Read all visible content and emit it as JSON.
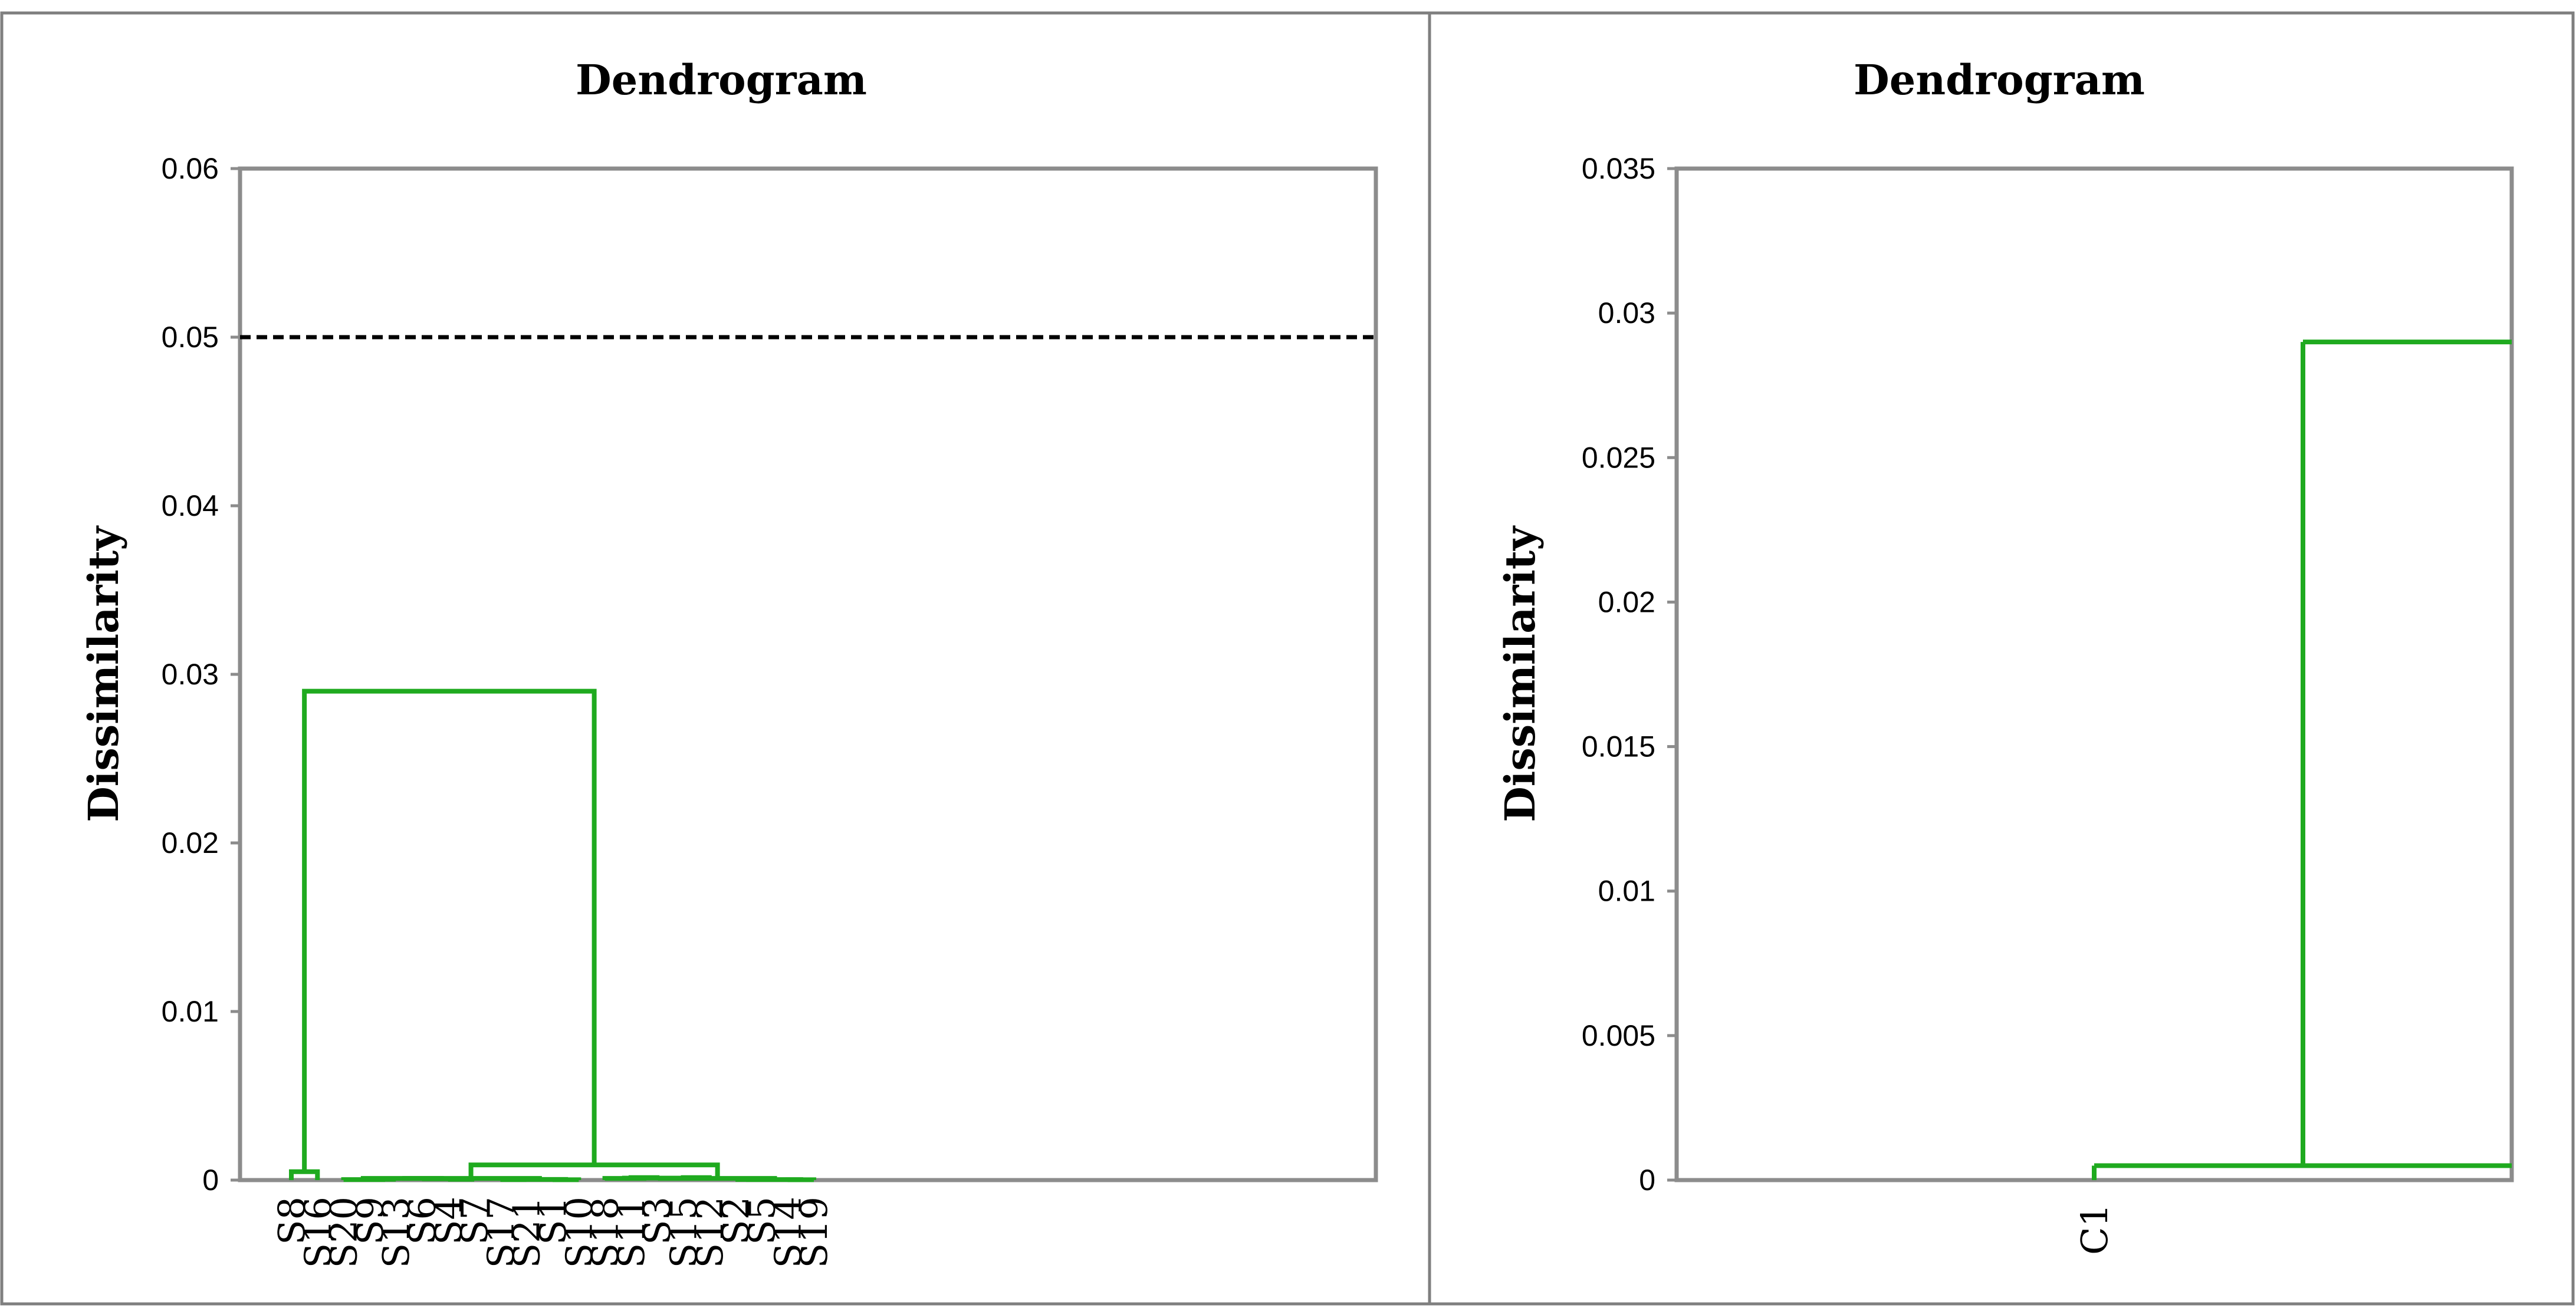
{
  "figure": {
    "frame_color": "#7f7f7f",
    "link_color": "#1faa1f",
    "cut_line_color": "#000000"
  },
  "chart_data": [
    {
      "type": "dendrogram",
      "title": "Dendrogram",
      "ylabel": "Dissimilarity",
      "xlabel": "",
      "ylim": [
        0,
        0.06
      ],
      "yticks": [
        "0",
        "0.01",
        "0.02",
        "0.03",
        "0.04",
        "0.05",
        "0.06"
      ],
      "ytick_values": [
        0,
        0.01,
        0.02,
        0.03,
        0.04,
        0.05,
        0.06
      ],
      "leaves": [
        "S8",
        "S16",
        "S20",
        "S9",
        "S13",
        "S6",
        "S4",
        "S7",
        "S17",
        "S21",
        "S1",
        "S10",
        "S18",
        "S11",
        "S3",
        "S15",
        "S12",
        "S2",
        "S5",
        "S14",
        "S19"
      ],
      "cut_line": {
        "y": 0.05,
        "style": "dashed"
      },
      "merges": [
        {
          "left": "leaf:0",
          "right": "leaf:1",
          "height": 0.0005
        },
        {
          "left": "leaf:3",
          "right": "leaf:4",
          "height": 5e-05
        },
        {
          "left": "leaf:2",
          "right": "node:1",
          "height": 3e-05
        },
        {
          "left": "leaf:6",
          "right": "leaf:7",
          "height": 5e-05
        },
        {
          "left": "leaf:5",
          "right": "node:3",
          "height": 8e-05
        },
        {
          "left": "node:2",
          "right": "node:4",
          "height": 0.0001
        },
        {
          "left": "leaf:8",
          "right": "leaf:9",
          "height": 3e-05
        },
        {
          "left": "leaf:10",
          "right": "leaf:11",
          "height": 2e-05
        },
        {
          "left": "node:6",
          "right": "node:7",
          "height": 4e-05
        },
        {
          "left": "node:5",
          "right": "node:8",
          "height": 0.0001
        },
        {
          "left": "leaf:13",
          "right": "leaf:14",
          "height": 0.00015
        },
        {
          "left": "leaf:12",
          "right": "node:10",
          "height": 0.0001
        },
        {
          "left": "leaf:15",
          "right": "leaf:16",
          "height": 0.00015
        },
        {
          "left": "node:11",
          "right": "node:12",
          "height": 0.00012
        },
        {
          "left": "leaf:17",
          "right": "leaf:18",
          "height": 4e-05
        },
        {
          "left": "leaf:19",
          "right": "leaf:20",
          "height": 2e-05
        },
        {
          "left": "node:14",
          "right": "node:15",
          "height": 3e-05
        },
        {
          "left": "node:13",
          "right": "node:16",
          "height": 0.0001
        },
        {
          "left": "node:9",
          "right": "node:17",
          "height": 0.0009
        },
        {
          "left": "node:0",
          "right": "node:18",
          "height": 0.029
        }
      ]
    },
    {
      "type": "dendrogram",
      "title": "Dendrogram",
      "ylabel": "Dissimilarity",
      "xlabel": "",
      "ylim": [
        0,
        0.035
      ],
      "yticks": [
        "0",
        "0.005",
        "0.01",
        "0.015",
        "0.02",
        "0.025",
        "0.03",
        "0.035"
      ],
      "ytick_values": [
        0,
        0.005,
        0.01,
        0.015,
        0.02,
        0.025,
        0.03,
        0.035
      ],
      "leaves": [
        "C1"
      ],
      "links": [
        {
          "x_from": 0.5,
          "x_to": 1.0,
          "height": 0.0005
        },
        {
          "x_at": 0.75,
          "from": 0.0005,
          "to": 0.029
        },
        {
          "x_from": 0.75,
          "x_to": 1.0,
          "height": 0.029
        }
      ]
    }
  ]
}
